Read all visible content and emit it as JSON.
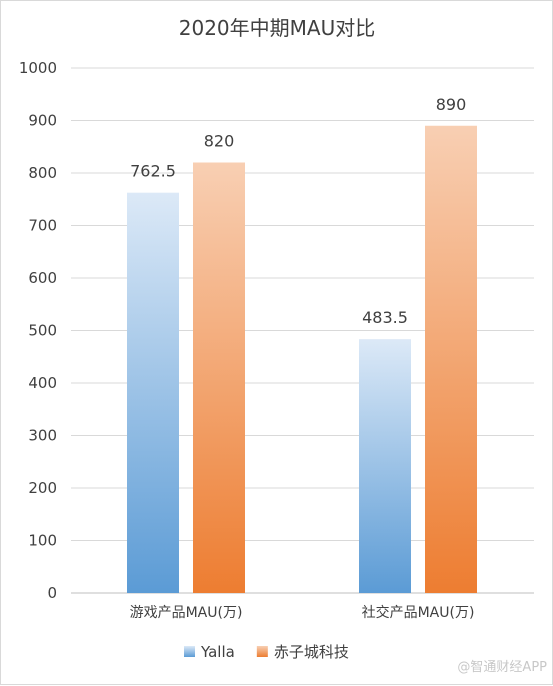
{
  "chart_data": {
    "type": "bar",
    "title": "2020年中期MAU对比",
    "categories": [
      "游戏产品MAU(万)",
      "社交产品MAU(万)"
    ],
    "series": [
      {
        "name": "Yalla",
        "values": [
          762.5,
          483.5
        ],
        "labels": [
          "762.5",
          "483.5"
        ],
        "color_top": "#dce9f7",
        "color_bottom": "#5b9bd5"
      },
      {
        "name": "赤子城科技",
        "values": [
          820,
          890
        ],
        "labels": [
          "820",
          "890"
        ],
        "color_top": "#f8cfb3",
        "color_bottom": "#ed7d31"
      }
    ],
    "ylim": [
      0,
      1000
    ],
    "yticks": [
      0,
      100,
      200,
      300,
      400,
      500,
      600,
      700,
      800,
      900,
      1000
    ],
    "xlabel": "",
    "ylabel": "",
    "grid": true,
    "legend_position": "bottom"
  },
  "watermark": "@智通财经APP"
}
